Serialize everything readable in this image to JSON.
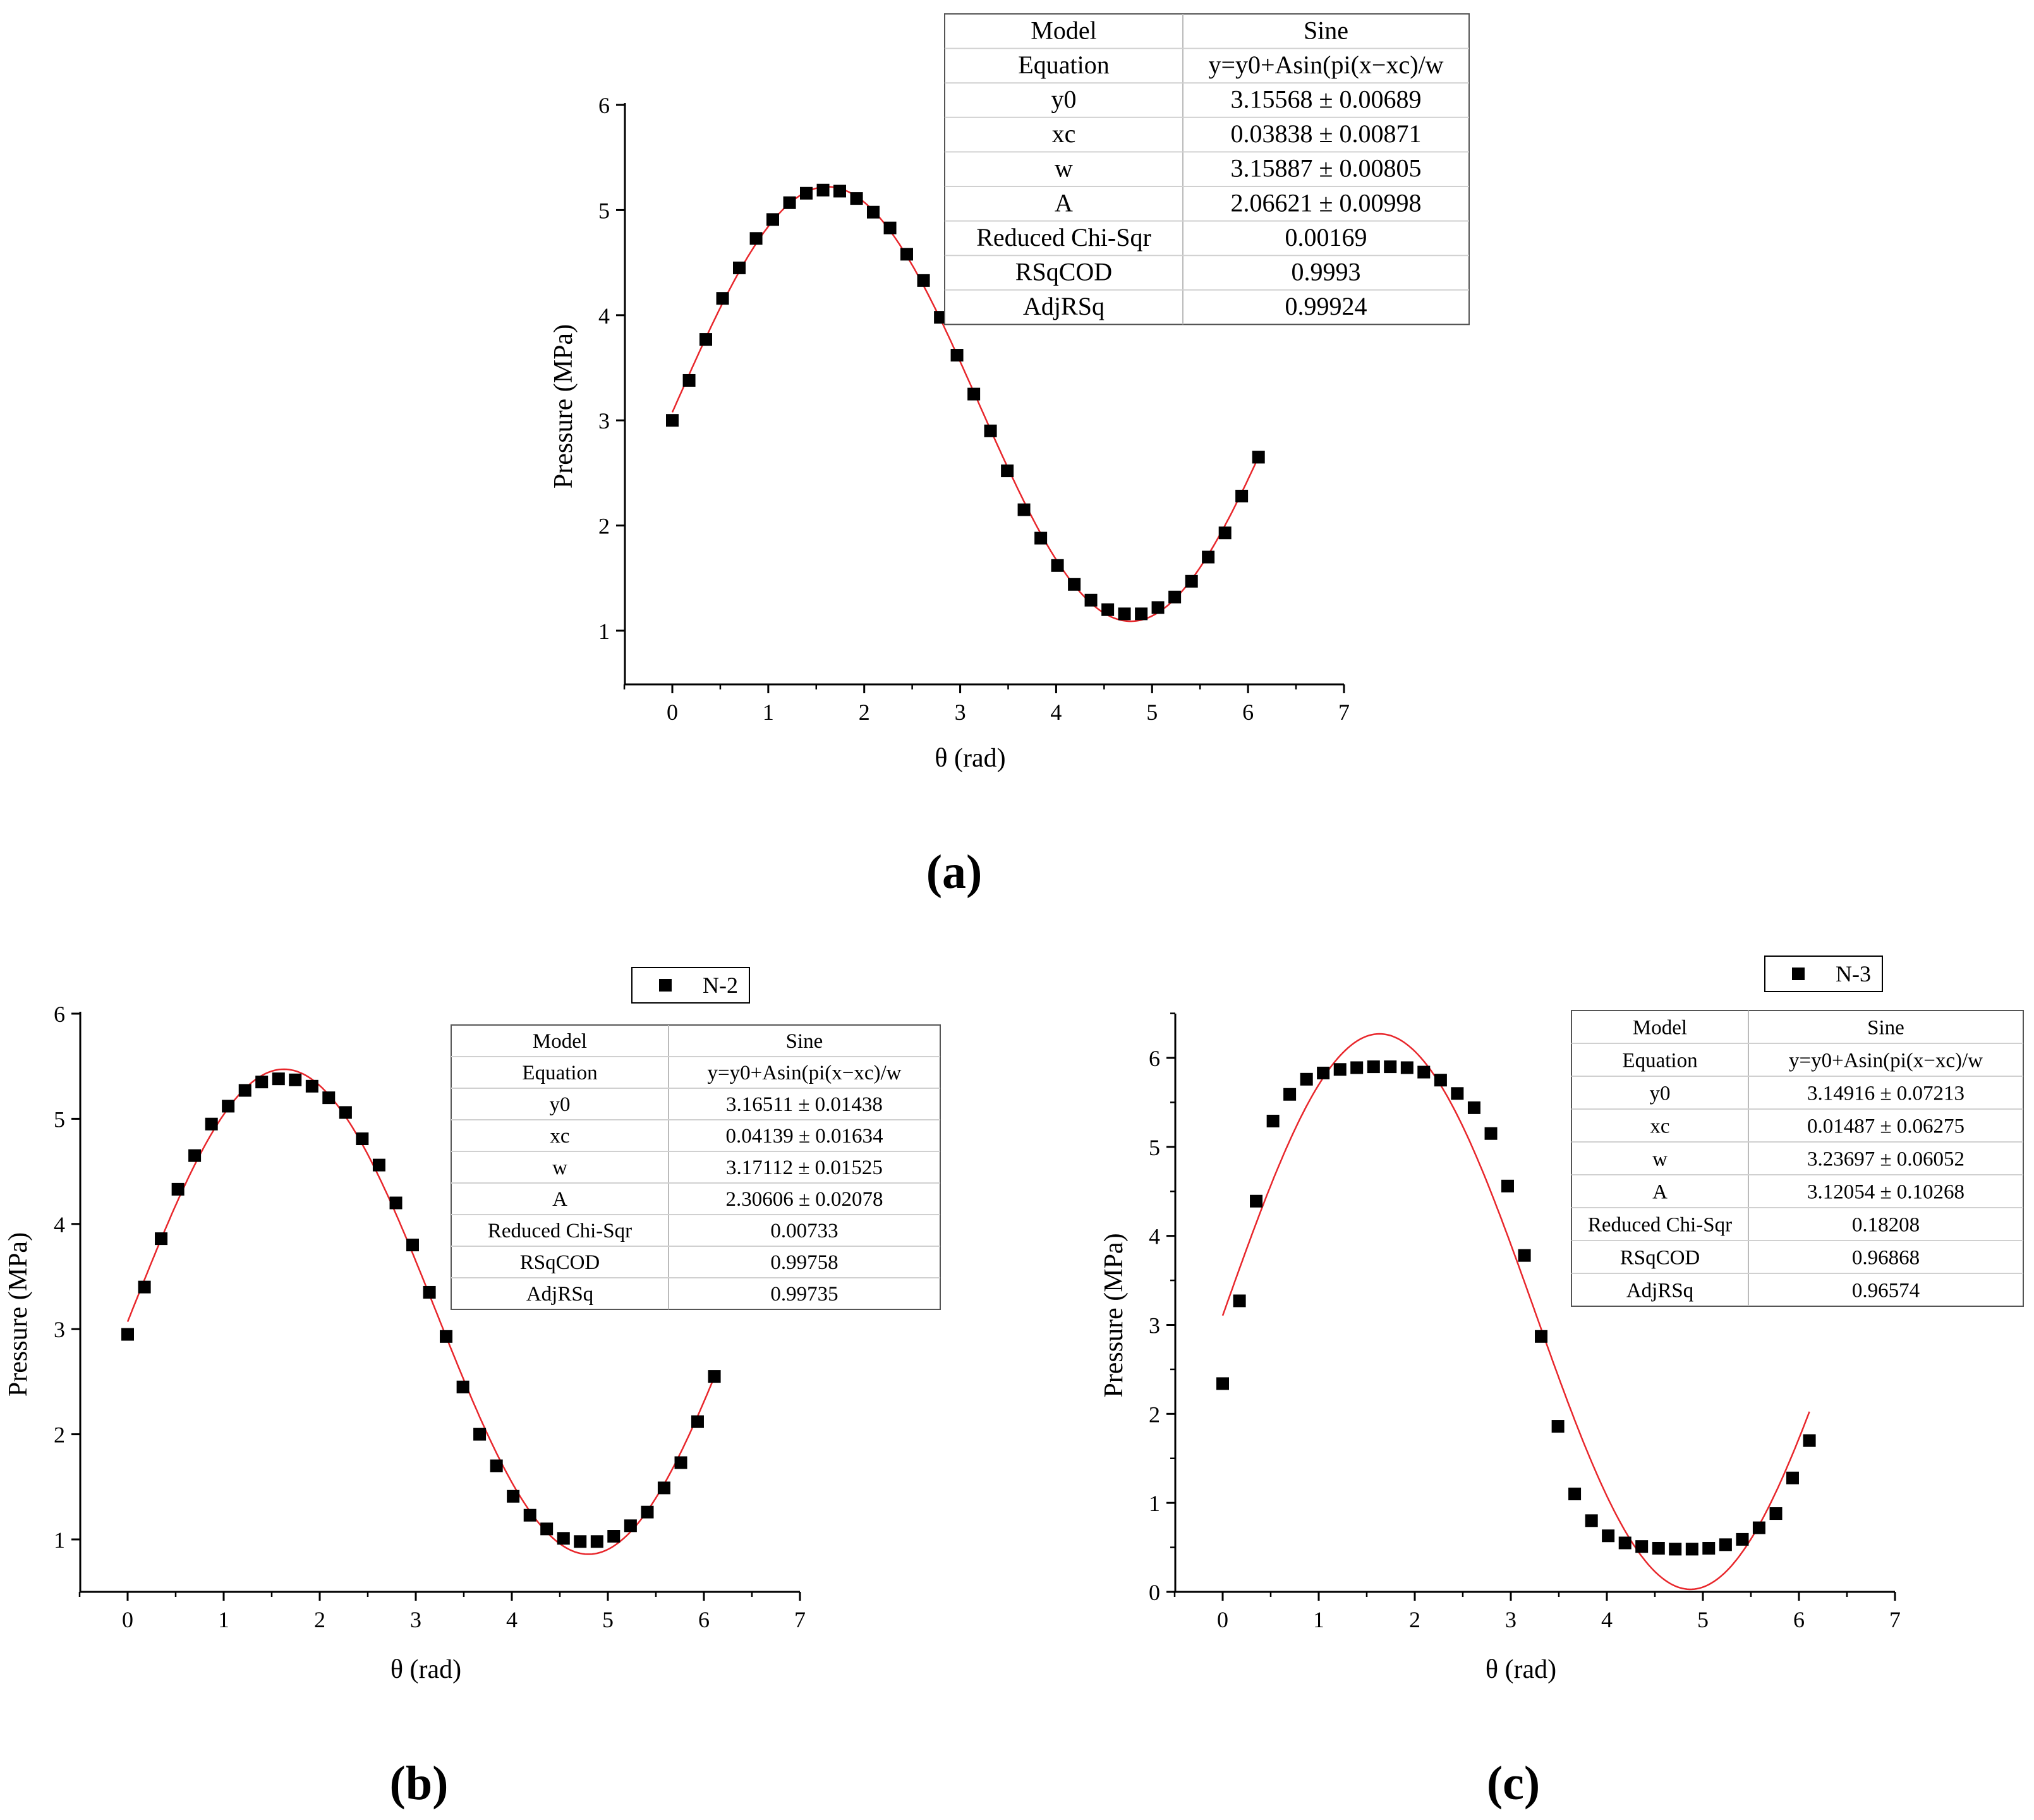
{
  "panels": [
    {
      "caption": "(a)",
      "legend": "",
      "fit_table": [
        [
          "Model",
          "Sine"
        ],
        [
          "Equation",
          "y=y0+Asin(pi(x−xc)/w"
        ],
        [
          "y0",
          "3.15568 ± 0.00689"
        ],
        [
          "xc",
          "0.03838 ± 0.00871"
        ],
        [
          "w",
          "3.15887 ± 0.00805"
        ],
        [
          "A",
          "2.06621 ± 0.00998"
        ],
        [
          "Reduced Chi-Sqr",
          "0.00169"
        ],
        [
          "RSqCOD",
          "0.9993"
        ],
        [
          "AdjRSq",
          "0.99924"
        ]
      ]
    },
    {
      "caption": "(b)",
      "legend": "N-2",
      "fit_table": [
        [
          "Model",
          "Sine"
        ],
        [
          "Equation",
          "y=y0+Asin(pi(x−xc)/w"
        ],
        [
          "y0",
          "3.16511 ± 0.01438"
        ],
        [
          "xc",
          "0.04139 ± 0.01634"
        ],
        [
          "w",
          "3.17112 ± 0.01525"
        ],
        [
          "A",
          "2.30606 ± 0.02078"
        ],
        [
          "Reduced Chi-Sqr",
          "0.00733"
        ],
        [
          "RSqCOD",
          "0.99758"
        ],
        [
          "AdjRSq",
          "0.99735"
        ]
      ]
    },
    {
      "caption": "(c)",
      "legend": "N-3",
      "fit_table": [
        [
          "Model",
          "Sine"
        ],
        [
          "Equation",
          "y=y0+Asin(pi(x−xc)/w"
        ],
        [
          "y0",
          "3.14916 ± 0.07213"
        ],
        [
          "xc",
          "0.01487 ± 0.06275"
        ],
        [
          "w",
          "3.23697 ± 0.06052"
        ],
        [
          "A",
          "3.12054 ± 0.10268"
        ],
        [
          "Reduced Chi-Sqr",
          "0.18208"
        ],
        [
          "RSqCOD",
          "0.96868"
        ],
        [
          "AdjRSq",
          "0.96574"
        ]
      ]
    }
  ],
  "colors": {
    "points": "#000000",
    "fit_line": "#e8262b",
    "axis": "#000000"
  },
  "chart_data": [
    {
      "type": "scatter",
      "title": "",
      "xlabel": "θ (rad)",
      "ylabel": "Pressure (MPa)",
      "xlim": [
        -0.5,
        7
      ],
      "ylim": [
        0.5,
        6
      ],
      "xticks": [
        0,
        1,
        2,
        3,
        4,
        5,
        6,
        7
      ],
      "yticks": [
        1,
        2,
        3,
        4,
        5,
        6
      ],
      "x": [
        0,
        0.175,
        0.349,
        0.524,
        0.698,
        0.873,
        1.047,
        1.222,
        1.396,
        1.571,
        1.745,
        1.92,
        2.094,
        2.269,
        2.443,
        2.618,
        2.793,
        2.967,
        3.142,
        3.316,
        3.491,
        3.665,
        3.84,
        4.014,
        4.189,
        4.363,
        4.538,
        4.712,
        4.887,
        5.061,
        5.236,
        5.411,
        5.585,
        5.76,
        5.934,
        6.109
      ],
      "series": [
        {
          "values": [
            3.0,
            3.38,
            3.77,
            4.16,
            4.45,
            4.73,
            4.91,
            5.07,
            5.16,
            5.19,
            5.18,
            5.11,
            4.98,
            4.83,
            4.58,
            4.33,
            3.98,
            3.62,
            3.25,
            2.9,
            2.52,
            2.15,
            1.88,
            1.62,
            1.44,
            1.29,
            1.2,
            1.16,
            1.16,
            1.22,
            1.32,
            1.47,
            1.7,
            1.93,
            2.28,
            2.65
          ]
        }
      ],
      "fit": {
        "y0": 3.15568,
        "xc": 0.03838,
        "w": 3.15887,
        "A": 2.06621
      }
    },
    {
      "type": "scatter",
      "title": "",
      "xlabel": "θ (rad)",
      "ylabel": "Pressure (MPa)",
      "xlim": [
        -0.5,
        7
      ],
      "ylim": [
        0.5,
        6
      ],
      "xticks": [
        0,
        1,
        2,
        3,
        4,
        5,
        6,
        7
      ],
      "yticks": [
        1,
        2,
        3,
        4,
        5,
        6
      ],
      "x": [
        0,
        0.175,
        0.349,
        0.524,
        0.698,
        0.873,
        1.047,
        1.222,
        1.396,
        1.571,
        1.745,
        1.92,
        2.094,
        2.269,
        2.443,
        2.618,
        2.793,
        2.967,
        3.142,
        3.316,
        3.491,
        3.665,
        3.84,
        4.014,
        4.189,
        4.363,
        4.538,
        4.712,
        4.887,
        5.061,
        5.236,
        5.411,
        5.585,
        5.76,
        5.934,
        6.109
      ],
      "series": [
        {
          "name": "N-2",
          "values": [
            2.95,
            3.4,
            3.86,
            4.33,
            4.65,
            4.95,
            5.12,
            5.27,
            5.35,
            5.38,
            5.37,
            5.31,
            5.2,
            5.06,
            4.81,
            4.56,
            4.2,
            3.8,
            3.35,
            2.93,
            2.45,
            2.0,
            1.7,
            1.41,
            1.23,
            1.1,
            1.01,
            0.98,
            0.98,
            1.03,
            1.13,
            1.26,
            1.49,
            1.73,
            2.12,
            2.55
          ]
        }
      ],
      "fit": {
        "y0": 3.16511,
        "xc": 0.04139,
        "w": 3.17112,
        "A": 2.30606
      }
    },
    {
      "type": "scatter",
      "title": "",
      "xlabel": "θ (rad)",
      "ylabel": "Pressure (MPa)",
      "xlim": [
        -0.5,
        7
      ],
      "ylim": [
        0,
        6.5
      ],
      "xticks": [
        0,
        1,
        2,
        3,
        4,
        5,
        6,
        7
      ],
      "yticks": [
        0,
        1,
        2,
        3,
        4,
        5,
        6
      ],
      "x": [
        0,
        0.175,
        0.349,
        0.524,
        0.698,
        0.873,
        1.047,
        1.222,
        1.396,
        1.571,
        1.745,
        1.92,
        2.094,
        2.269,
        2.443,
        2.618,
        2.793,
        2.967,
        3.142,
        3.316,
        3.491,
        3.665,
        3.84,
        4.014,
        4.189,
        4.363,
        4.538,
        4.712,
        4.887,
        5.061,
        5.236,
        5.411,
        5.585,
        5.76,
        5.934,
        6.109
      ],
      "series": [
        {
          "name": "N-3",
          "values": [
            2.34,
            3.27,
            4.39,
            5.29,
            5.59,
            5.76,
            5.83,
            5.87,
            5.89,
            5.9,
            5.9,
            5.89,
            5.84,
            5.75,
            5.6,
            5.44,
            5.15,
            4.56,
            3.78,
            2.87,
            1.86,
            1.1,
            0.8,
            0.63,
            0.55,
            0.51,
            0.49,
            0.48,
            0.48,
            0.49,
            0.53,
            0.59,
            0.72,
            0.88,
            1.28,
            1.7
          ]
        }
      ],
      "fit": {
        "y0": 3.14916,
        "xc": 0.01487,
        "w": 3.23697,
        "A": 3.12054
      }
    }
  ]
}
